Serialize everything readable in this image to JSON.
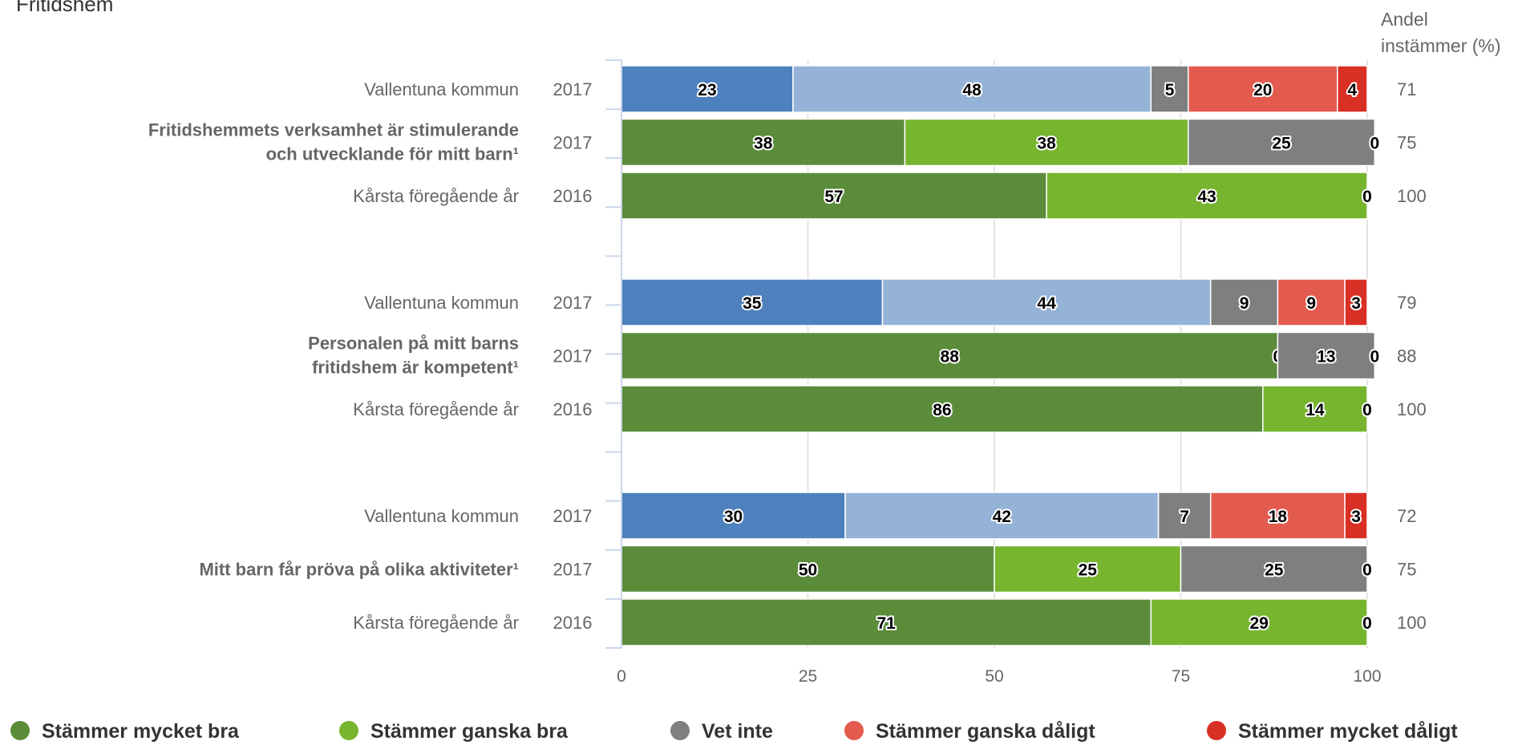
{
  "chart_data": {
    "type": "bar",
    "orientation": "horizontal",
    "stacked": true,
    "title": "Fritidshem",
    "share_header": [
      "Andel",
      "instämmer (%)"
    ],
    "xlim": [
      0,
      100
    ],
    "xticks": [
      0,
      25,
      50,
      75,
      100
    ],
    "grid": true,
    "legend_position": "bottom",
    "series": [
      {
        "name": "Stämmer mycket bra",
        "color": "#5b8c3a",
        "alt_color": "#4e81bd"
      },
      {
        "name": "Stämmer ganska bra",
        "color": "#77b52f",
        "alt_color": "#95b3d7"
      },
      {
        "name": "Vet inte",
        "color": "#7f7f7f",
        "alt_color": "#7f7f7f"
      },
      {
        "name": "Stämmer ganska dåligt",
        "color": "#e35a4e",
        "alt_color": "#e35a4e"
      },
      {
        "name": "Stämmer mycket dåligt",
        "color": "#d93025",
        "alt_color": "#d93025"
      }
    ],
    "groups": [
      {
        "question": [
          "Fritidshemmets verksamhet är stimulerande",
          "och utvecklande för mitt barn¹"
        ],
        "rows": [
          {
            "label": "Vallentuna kommun",
            "year": "2017",
            "share": "71",
            "palette": "alt",
            "values": [
              23,
              48,
              5,
              20,
              4
            ]
          },
          {
            "label": "",
            "year": "2017",
            "share": "75",
            "palette": "main",
            "values": [
              38,
              38,
              25,
              0,
              null
            ]
          },
          {
            "label": "Kårsta föregående år",
            "year": "2016",
            "share": "100",
            "palette": "main",
            "values": [
              57,
              43,
              null,
              0,
              null
            ]
          }
        ]
      },
      {
        "question": [
          "Personalen på mitt barns",
          "fritidshem är kompetent¹"
        ],
        "rows": [
          {
            "label": "Vallentuna kommun",
            "year": "2017",
            "share": "79",
            "palette": "alt",
            "values": [
              35,
              44,
              9,
              9,
              3
            ]
          },
          {
            "label": "",
            "year": "2017",
            "share": "88",
            "palette": "main",
            "values": [
              88,
              0,
              13,
              0,
              null
            ]
          },
          {
            "label": "Kårsta föregående år",
            "year": "2016",
            "share": "100",
            "palette": "main",
            "values": [
              86,
              14,
              null,
              0,
              null
            ]
          }
        ]
      },
      {
        "question": [
          "Mitt barn får pröva på olika aktiviteter¹"
        ],
        "rows": [
          {
            "label": "Vallentuna kommun",
            "year": "2017",
            "share": "72",
            "palette": "alt",
            "values": [
              30,
              42,
              7,
              18,
              3
            ]
          },
          {
            "label": "",
            "year": "2017",
            "share": "75",
            "palette": "main",
            "values": [
              50,
              25,
              25,
              0,
              null
            ]
          },
          {
            "label": "Kårsta föregående år",
            "year": "2016",
            "share": "100",
            "palette": "main",
            "values": [
              71,
              29,
              null,
              0,
              null
            ]
          }
        ]
      }
    ]
  }
}
